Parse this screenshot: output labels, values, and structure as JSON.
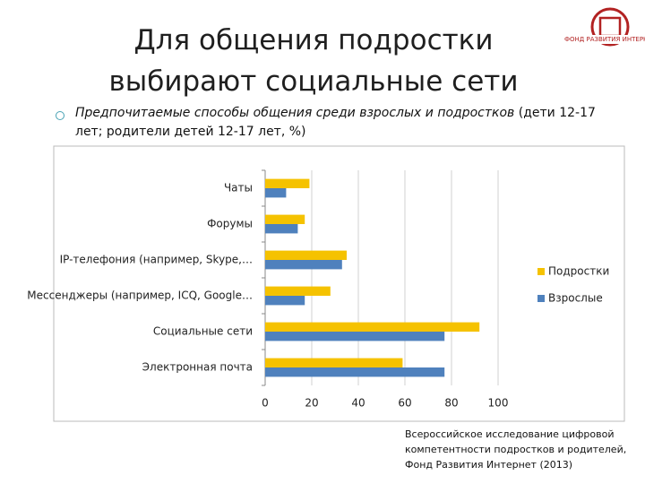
{
  "title": [
    "Для общения подростки",
    "выбирают социальные сети"
  ],
  "logo_text": "ФОНД РАЗВИТИЯ ИНТЕРНЕТ",
  "subtitle": {
    "italic": "Предпочитаемые способы общения среди взрослых и подростков",
    "plain": " (дети 12-17 лет; родители детей 12-17 лет, %)"
  },
  "chart_data": {
    "type": "bar",
    "orientation": "horizontal",
    "categories": [
      "Чаты",
      "Форумы",
      "IP-телефония (например, Skype,…",
      "Мессенджеры (например, ICQ, Google…",
      "Социальные сети",
      "Электронная почта"
    ],
    "series": [
      {
        "name": "Подростки",
        "color": "#f5c200",
        "values": [
          19,
          17,
          35,
          28,
          92,
          59
        ]
      },
      {
        "name": "Взрослые",
        "color": "#4f81bd",
        "values": [
          9,
          14,
          33,
          17,
          77,
          77
        ]
      }
    ],
    "xlim": [
      0,
      100
    ],
    "xticks": [
      0,
      20,
      40,
      60,
      80,
      100
    ],
    "grid": true,
    "legend": "right"
  },
  "source": [
    "Всероссийское исследование цифровой",
    "компетентности подростков и родителей,",
    "Фонд Развития Интернет (2013)"
  ]
}
